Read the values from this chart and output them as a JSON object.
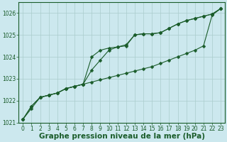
{
  "title": "Graphe pression niveau de la mer (hPa)",
  "bg_color": "#cce8ee",
  "grid_color": "#aacccc",
  "line_color": "#1a5c2a",
  "text_color": "#1a5c2a",
  "xlim": [
    -0.5,
    23.5
  ],
  "ylim": [
    1021.0,
    1026.5
  ],
  "yticks": [
    1021,
    1022,
    1023,
    1024,
    1025,
    1026
  ],
  "xticks": [
    0,
    1,
    2,
    3,
    4,
    5,
    6,
    7,
    8,
    9,
    10,
    11,
    12,
    13,
    14,
    15,
    16,
    17,
    18,
    19,
    20,
    21,
    22,
    23
  ],
  "series": [
    [
      1021.15,
      1021.75,
      1022.15,
      1022.25,
      1022.35,
      1022.55,
      1022.65,
      1022.75,
      1022.85,
      1022.95,
      1023.05,
      1023.15,
      1023.25,
      1023.35,
      1023.45,
      1023.55,
      1023.7,
      1023.85,
      1024.0,
      1024.15,
      1024.3,
      1024.5,
      1025.9,
      1026.2
    ],
    [
      1021.15,
      1021.75,
      1022.15,
      1022.25,
      1022.35,
      1022.55,
      1022.65,
      1022.75,
      1024.0,
      1024.3,
      1024.4,
      1024.45,
      1024.5,
      1025.0,
      1025.05,
      1025.05,
      1025.1,
      1025.3,
      1025.5,
      1025.65,
      1025.75,
      1025.85,
      1025.95,
      1026.2
    ],
    [
      1021.15,
      1021.65,
      1022.15,
      1022.25,
      1022.35,
      1022.55,
      1022.65,
      1022.75,
      1023.4,
      1023.85,
      1024.3,
      1024.45,
      1024.55,
      1025.0,
      1025.05,
      1025.05,
      1025.1,
      1025.3,
      1025.5,
      1025.65,
      1025.75,
      1025.85,
      1025.95,
      1026.2
    ]
  ],
  "marker": "D",
  "markersize": 2.5,
  "linewidth": 0.8,
  "title_fontsize": 7.5,
  "tick_fontsize": 5.5
}
